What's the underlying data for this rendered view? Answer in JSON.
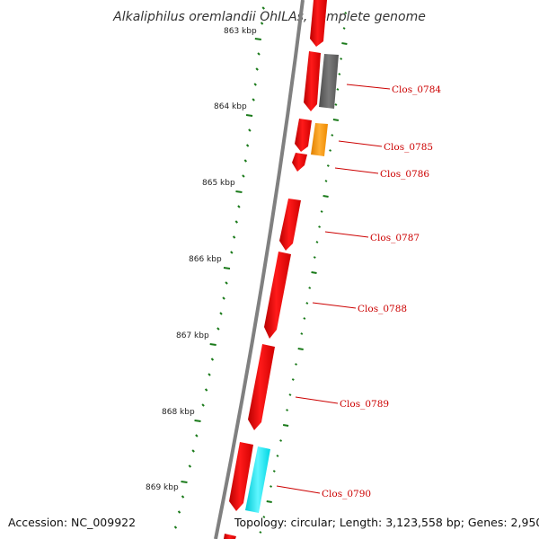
{
  "title": "Alkaliphilus oremlandii OhILAs, complete genome",
  "colors": {
    "backbone": "#808080",
    "gene_red": "#ee0000",
    "gene_gray": "#666666",
    "gene_orange": "#ff9900",
    "gene_cyan": "#00e5ee",
    "tick_green": "#1a7a1a",
    "label_red": "#cc0000"
  },
  "ruler_labels": [
    "863 kbp",
    "864 kbp",
    "865 kbp",
    "866 kbp",
    "867 kbp",
    "868 kbp",
    "869 kbp"
  ],
  "gene_labels": [
    "Clos_0784",
    "Clos_0785",
    "Clos_0786",
    "Clos_0787",
    "Clos_0788",
    "Clos_0789",
    "Clos_0790"
  ],
  "footer": {
    "accession": "Accession: NC_009922",
    "summary": "Topology: circular; Length: 3,123,558 bp; Genes: 2,950"
  }
}
